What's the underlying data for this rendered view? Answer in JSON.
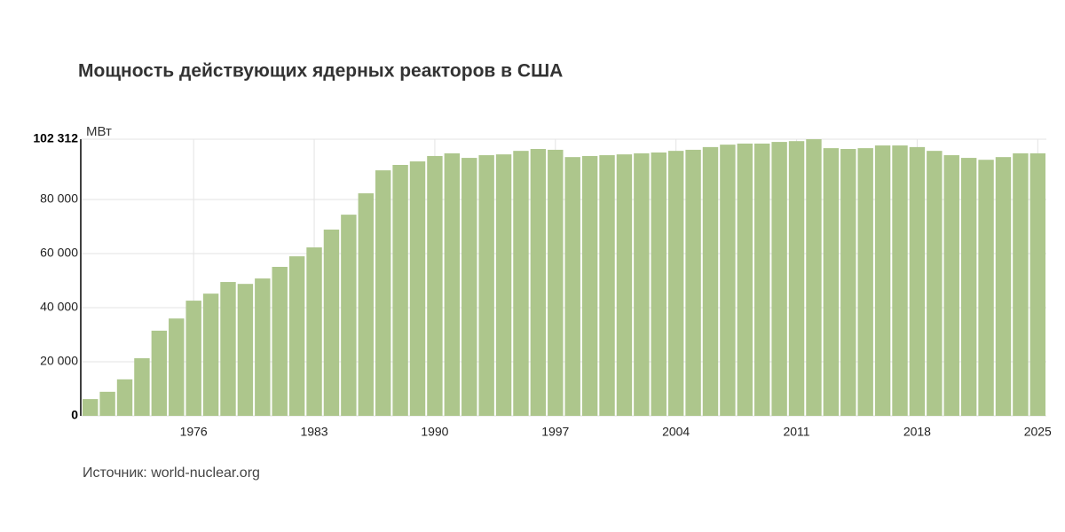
{
  "chart_data": {
    "type": "bar",
    "title": "Мощность действующих ядерных реакторов в США",
    "y_unit": "МВт",
    "source": "Источник: world-nuclear.org",
    "color": "#adc68c",
    "x": [
      1970,
      1971,
      1972,
      1973,
      1974,
      1975,
      1976,
      1977,
      1978,
      1979,
      1980,
      1981,
      1982,
      1983,
      1984,
      1985,
      1986,
      1987,
      1988,
      1989,
      1990,
      1991,
      1992,
      1993,
      1994,
      1995,
      1996,
      1997,
      1998,
      1999,
      2000,
      2001,
      2002,
      2003,
      2004,
      2005,
      2006,
      2007,
      2008,
      2009,
      2010,
      2011,
      2012,
      2013,
      2014,
      2015,
      2016,
      2017,
      2018,
      2019,
      2020,
      2021,
      2022,
      2023,
      2024,
      2025
    ],
    "values": [
      6200,
      8900,
      13500,
      21300,
      31500,
      36000,
      42600,
      45200,
      49500,
      48800,
      50800,
      55100,
      59000,
      62300,
      68900,
      74400,
      82300,
      90800,
      92800,
      94100,
      96100,
      97100,
      95400,
      96400,
      96700,
      98000,
      98700,
      98400,
      95700,
      96100,
      96400,
      96700,
      97100,
      97400,
      98000,
      98400,
      99400,
      100300,
      100700,
      100700,
      101300,
      101600,
      102312,
      99000,
      98700,
      99000,
      100000,
      100000,
      99400,
      98000,
      96400,
      95400,
      94700,
      95700,
      97100,
      97100
    ],
    "xlim": [
      1969.5,
      2025.5
    ],
    "xticks": [
      1976,
      1983,
      1990,
      1997,
      2004,
      2011,
      2018,
      2025
    ],
    "ylim": [
      0,
      102312
    ],
    "yticks": [
      0,
      {
        "value": 20000,
        "label": "20 000"
      },
      {
        "value": 40000,
        "label": "40 000"
      },
      {
        "value": 60000,
        "label": "60 000"
      },
      {
        "value": 80000,
        "label": "80 000"
      },
      {
        "value": 102312,
        "label": "102 312"
      }
    ],
    "grid": true
  }
}
